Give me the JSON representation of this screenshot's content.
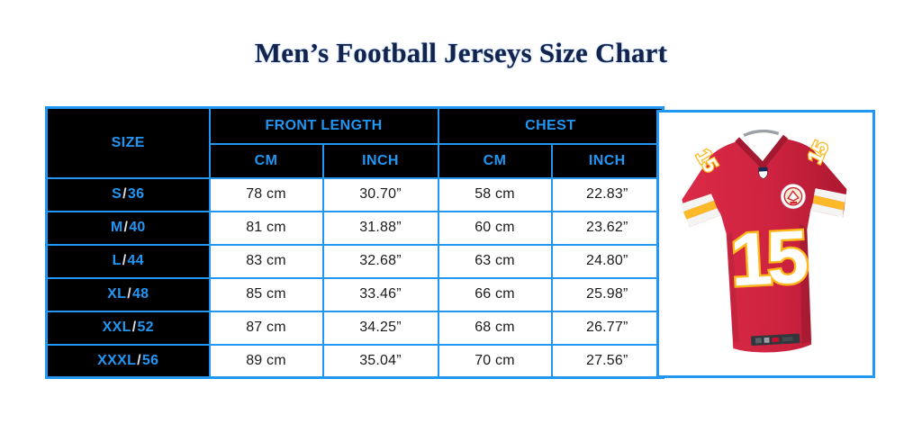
{
  "page": {
    "title": "Men’s Football Jerseys Size Chart"
  },
  "colors": {
    "accent_blue": "#2196F3",
    "header_bg": "#000000",
    "title_navy": "#13234A",
    "value_text": "#1B1B1B",
    "size_slash": "#D9DFE5",
    "jersey_red": "#CE2340",
    "jersey_red_dark": "#AE1830",
    "jersey_gold": "#FFB81C",
    "jersey_white": "#FFFFFF"
  },
  "chart_data": {
    "type": "table",
    "title": "Men’s Football Jerseys Size Chart",
    "column_groups": [
      {
        "label": "SIZE",
        "span": 1
      },
      {
        "label": "FRONT LENGTH",
        "span": 2
      },
      {
        "label": "CHEST",
        "span": 2
      }
    ],
    "sub_headers": [
      "CM",
      "INCH",
      "CM",
      "INCH"
    ],
    "rows": [
      {
        "size": "S/36",
        "front_cm": "78 cm",
        "front_inch": "30.70”",
        "chest_cm": "58 cm",
        "chest_inch": "22.83”"
      },
      {
        "size": "M/40",
        "front_cm": "81 cm",
        "front_inch": "31.88”",
        "chest_cm": "60 cm",
        "chest_inch": "23.62”"
      },
      {
        "size": "L/44",
        "front_cm": "83 cm",
        "front_inch": "32.68”",
        "chest_cm": "63 cm",
        "chest_inch": "24.80”"
      },
      {
        "size": "XL/48",
        "front_cm": "85 cm",
        "front_inch": "33.46”",
        "chest_cm": "66 cm",
        "chest_inch": "25.98”"
      },
      {
        "size": "XXL/52",
        "front_cm": "87 cm",
        "front_inch": "34.25”",
        "chest_cm": "68 cm",
        "chest_inch": "26.77”"
      },
      {
        "size": "XXXL/56",
        "front_cm": "89 cm",
        "front_inch": "35.04”",
        "chest_cm": "70 cm",
        "chest_inch": "27.56”"
      }
    ]
  },
  "jersey": {
    "number": "15"
  }
}
